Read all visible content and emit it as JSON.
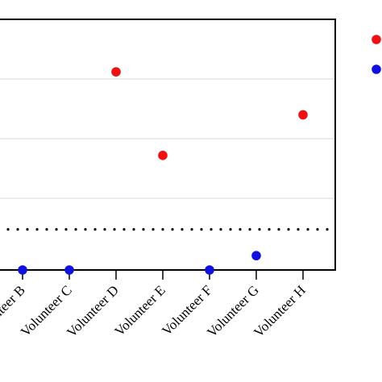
{
  "chart_data": {
    "type": "scatter",
    "categories": [
      "Volunteer B",
      "Volunteer C",
      "Volunteer D",
      "Volunteer E",
      "Volunteer F",
      "Volunteer G",
      "Volunteer H"
    ],
    "series": [
      {
        "color": "#ee1111",
        "values": [
          null,
          null,
          0.83,
          0.48,
          null,
          null,
          0.65
        ]
      },
      {
        "color": "#1111dd",
        "values": [
          0.0,
          0.0,
          null,
          null,
          0.0,
          0.06,
          null
        ]
      }
    ],
    "threshold": 0.17,
    "ylim": [
      0,
      1.05
    ],
    "gridlines": [
      0.3,
      0.55,
      0.8
    ],
    "grid": true,
    "legend": "top-right"
  }
}
